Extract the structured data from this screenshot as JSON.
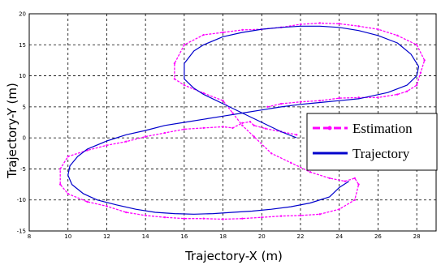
{
  "chart_data": {
    "type": "line",
    "xlabel": "Trajectory-X (m)",
    "ylabel": "Trajectory-Y (m)",
    "xlim": [
      8,
      29
    ],
    "ylim": [
      -15,
      20
    ],
    "xticks": [
      8,
      10,
      12,
      14,
      16,
      18,
      20,
      22,
      24,
      26,
      28
    ],
    "yticks": [
      -15,
      -10,
      -5,
      0,
      5,
      10,
      15,
      20
    ],
    "grid": true,
    "legend_position": "right",
    "series": [
      {
        "name": "Estimation",
        "color": "#ff00ff",
        "style": "dashed-with-markers",
        "x": [
          21.8,
          21.0,
          20.2,
          19.6,
          19.4,
          19.0,
          18.5,
          18.0,
          17.0,
          16.0,
          15.0,
          14.0,
          13.0,
          12.0,
          11.0,
          10.0,
          9.6,
          9.6,
          10.0,
          11.0,
          12.0,
          13.0,
          14.0,
          15.0,
          16.0,
          17.0,
          18.0,
          19.0,
          20.0,
          21.0,
          22.0,
          23.0,
          24.0,
          24.8,
          25.0,
          24.8,
          24.3,
          23.5,
          22.5,
          21.5,
          20.5,
          19.6,
          19.0,
          18.5,
          18.0,
          17.0,
          16.0,
          15.5,
          15.5,
          16.0,
          17.0,
          18.0,
          19.0,
          20.0,
          21.0,
          22.0,
          23.0,
          24.0,
          25.0,
          26.0,
          27.0,
          28.0,
          28.4,
          28.2,
          28.0,
          27.5,
          27.0,
          26.0,
          25.0,
          24.0,
          23.0,
          22.0,
          21.0,
          20.3
        ],
        "y": [
          0.5,
          1.0,
          1.5,
          2.0,
          2.6,
          2.4,
          1.6,
          1.8,
          1.6,
          1.4,
          0.8,
          0.2,
          -0.6,
          -1.2,
          -2.0,
          -3.0,
          -5.0,
          -7.5,
          -9.0,
          -10.3,
          -11.0,
          -12.0,
          -12.5,
          -12.8,
          -13.0,
          -13.0,
          -13.1,
          -13.0,
          -12.8,
          -12.6,
          -12.5,
          -12.3,
          -11.5,
          -10.0,
          -7.5,
          -6.5,
          -7.0,
          -6.5,
          -5.5,
          -4.0,
          -2.5,
          0.2,
          2.0,
          4.0,
          6.0,
          7.2,
          8.5,
          9.5,
          12.0,
          15.0,
          16.6,
          17.0,
          17.4,
          17.5,
          17.8,
          18.3,
          18.5,
          18.4,
          18.0,
          17.5,
          16.5,
          15.0,
          12.5,
          10.5,
          8.5,
          7.5,
          7.0,
          6.5,
          6.5,
          6.4,
          6.0,
          5.8,
          5.5,
          5.0
        ]
      },
      {
        "name": "Trajectory",
        "color": "#0000cc",
        "style": "solid",
        "x": [
          21.8,
          21.0,
          20.0,
          19.0,
          18.0,
          17.0,
          16.5,
          16.0,
          16.0,
          16.5,
          17.0,
          18.0,
          19.0,
          20.0,
          21.0,
          22.0,
          23.0,
          24.0,
          25.0,
          26.0,
          27.0,
          27.7,
          28.1,
          28.0,
          27.5,
          26.5,
          25.0,
          24.0,
          23.0,
          22.0,
          21.0,
          20.0,
          19.0,
          18.0,
          17.0,
          16.0,
          15.0,
          14.0,
          13.0,
          12.0,
          11.0,
          10.5,
          10.1,
          10.0,
          10.2,
          10.8,
          11.5,
          12.5,
          13.5,
          14.5,
          15.5,
          16.5,
          17.5,
          18.5,
          19.5,
          20.5,
          21.5,
          22.5,
          23.5,
          24.0,
          24.5
        ],
        "y": [
          0.0,
          1.0,
          2.5,
          4.0,
          5.5,
          7.0,
          8.0,
          9.5,
          12.0,
          14.0,
          15.0,
          16.3,
          17.0,
          17.5,
          17.8,
          18.0,
          18.0,
          17.8,
          17.3,
          16.5,
          15.3,
          13.5,
          11.5,
          10.0,
          8.5,
          7.3,
          6.3,
          6.0,
          5.7,
          5.4,
          5.0,
          4.5,
          4.0,
          3.5,
          3.0,
          2.5,
          2.0,
          1.2,
          0.5,
          -0.5,
          -1.8,
          -3.0,
          -4.5,
          -6.0,
          -7.5,
          -9.0,
          -10.0,
          -10.8,
          -11.5,
          -12.0,
          -12.2,
          -12.3,
          -12.2,
          -12.0,
          -11.8,
          -11.5,
          -11.1,
          -10.5,
          -9.5,
          -8.0,
          -7.0
        ]
      }
    ]
  }
}
